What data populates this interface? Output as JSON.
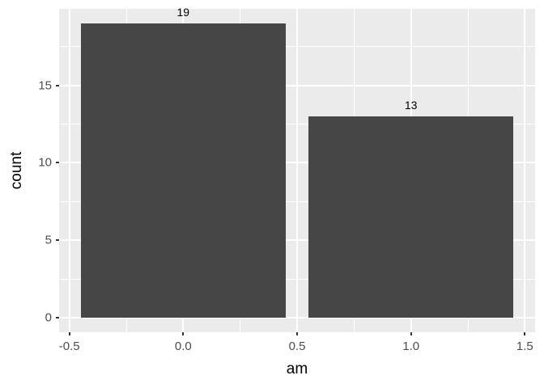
{
  "chart_data": {
    "type": "bar",
    "title": "",
    "xlabel": "am",
    "ylabel": "count",
    "categories": [
      "0",
      "1"
    ],
    "x": [
      0,
      1
    ],
    "values": [
      19,
      13
    ],
    "bar_labels": [
      "19",
      "13"
    ],
    "bar_width": 0.9,
    "xlim": [
      -0.545,
      1.545
    ],
    "ylim": [
      -0.95,
      19.95
    ],
    "x_ticks": {
      "values": [
        -0.5,
        0.0,
        0.5,
        1.0,
        1.5
      ],
      "labels": [
        "-0.5",
        "0.0",
        "0.5",
        "1.0",
        "1.5"
      ]
    },
    "y_ticks": {
      "values": [
        0,
        5,
        10,
        15
      ],
      "labels": [
        "0",
        "5",
        "10",
        "15"
      ]
    },
    "x_minor": [
      -0.25,
      0.25,
      0.75,
      1.25
    ],
    "y_minor": [
      2.5,
      7.5,
      12.5,
      17.5
    ],
    "grid": true,
    "legend": "none",
    "colors": {
      "bar_fill": "#464646",
      "panel_bg": "#EBEBEB",
      "grid": "#FFFFFF",
      "tick_label": "#4D4D4D",
      "axis_title": "#000000",
      "tick_mark": "#333333",
      "background": "#FFFFFF"
    }
  }
}
